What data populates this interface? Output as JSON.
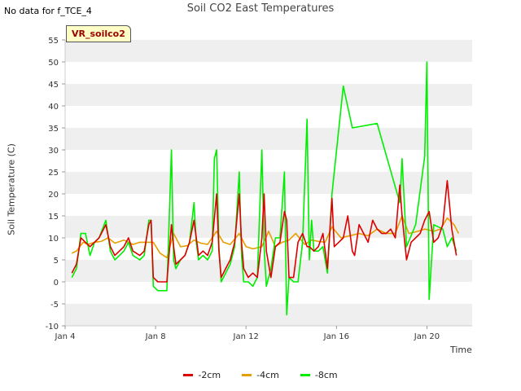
{
  "header": {
    "no_data_text": "No data for f_TCE_4",
    "title": "Soil CO2 East Temperatures",
    "badge": "VR_soilco2"
  },
  "chart_data": {
    "type": "line",
    "title": "Soil CO2 East Temperatures",
    "xlabel": "Time",
    "ylabel": "Soil Temperature (C)",
    "xlim": [
      4,
      22
    ],
    "ylim": [
      -10,
      55
    ],
    "xticks": [
      {
        "value": 4,
        "label": "Jan 4"
      },
      {
        "value": 8,
        "label": "Jan 8"
      },
      {
        "value": 12,
        "label": "Jan 12"
      },
      {
        "value": 16,
        "label": "Jan 16"
      },
      {
        "value": 20,
        "label": "Jan 20"
      }
    ],
    "yticks": [
      -10,
      -5,
      0,
      5,
      10,
      15,
      20,
      25,
      30,
      35,
      40,
      45,
      50,
      55
    ],
    "grid": "alternating horizontal bands",
    "legend_position": "bottom",
    "series": [
      {
        "name": "-2cm",
        "color": "#dd0000",
        "x": [
          4.3,
          4.5,
          4.7,
          4.9,
          5.1,
          5.3,
          5.5,
          5.8,
          6.0,
          6.2,
          6.4,
          6.6,
          6.8,
          7.0,
          7.3,
          7.5,
          7.7,
          7.8,
          7.9,
          8.1,
          8.3,
          8.5,
          8.7,
          8.8,
          8.9,
          9.1,
          9.3,
          9.5,
          9.7,
          9.8,
          9.9,
          10.1,
          10.3,
          10.5,
          10.7,
          10.8,
          10.9,
          11.1,
          11.3,
          11.5,
          11.7,
          11.8,
          11.9,
          12.1,
          12.3,
          12.5,
          12.7,
          12.8,
          12.9,
          13.1,
          13.3,
          13.5,
          13.7,
          13.8,
          13.9,
          14.1,
          14.3,
          14.5,
          14.7,
          14.8,
          15.0,
          15.2,
          15.4,
          15.6,
          15.8,
          15.9,
          16.1,
          16.3,
          16.5,
          16.7,
          16.8,
          17.0,
          17.2,
          17.4,
          17.6,
          17.8,
          18.0,
          18.2,
          18.4,
          18.6,
          18.8,
          18.9,
          19.1,
          19.3,
          19.5,
          19.7,
          19.9,
          20.1,
          20.3,
          20.5,
          20.7,
          20.9,
          21.1,
          21.3
        ],
        "y": [
          2,
          4,
          10,
          9,
          8,
          9,
          10,
          13,
          8,
          6,
          7,
          8,
          10,
          7,
          6,
          7,
          13,
          14,
          1,
          0,
          0,
          0,
          13,
          8,
          4,
          5,
          6,
          9,
          14,
          10,
          6,
          7,
          6,
          9,
          20,
          7,
          1,
          3,
          5,
          9,
          20,
          9,
          3,
          1,
          2,
          1,
          10,
          20,
          7,
          1,
          8,
          9,
          16,
          14,
          1,
          1,
          9,
          11,
          8,
          8,
          7,
          8,
          11,
          3,
          19,
          8,
          9,
          10,
          15,
          7,
          6,
          13,
          11,
          9,
          14,
          12,
          11,
          11,
          12,
          10,
          22,
          15,
          5,
          9,
          10,
          11,
          14,
          16,
          9,
          10,
          13,
          23,
          12,
          6
        ]
      },
      {
        "name": "-4cm",
        "color": "#e69f00",
        "x": [
          4.3,
          4.5,
          4.8,
          5.0,
          5.3,
          5.6,
          5.9,
          6.2,
          6.6,
          7.0,
          7.3,
          7.6,
          7.9,
          8.2,
          8.5,
          8.8,
          9.1,
          9.4,
          9.7,
          10.0,
          10.3,
          10.7,
          11.0,
          11.3,
          11.7,
          12.0,
          12.3,
          12.7,
          13.0,
          13.3,
          13.6,
          13.9,
          14.2,
          14.6,
          14.9,
          15.2,
          15.5,
          15.8,
          16.2,
          16.6,
          17.0,
          17.4,
          17.8,
          18.2,
          18.6,
          18.9,
          19.2,
          19.6,
          19.9,
          20.3,
          20.6,
          20.9,
          21.2,
          21.4
        ],
        "y": [
          6.5,
          7,
          9,
          8.5,
          9,
          9.2,
          10,
          8.8,
          9.5,
          8.5,
          9,
          9,
          9,
          6.5,
          5.5,
          11,
          8,
          8.2,
          9.5,
          8.8,
          8.5,
          11.5,
          9,
          8.5,
          11,
          8,
          7.5,
          8,
          11.5,
          8,
          9,
          9.5,
          11,
          8.5,
          9.5,
          9.2,
          9,
          12.5,
          10,
          10.5,
          11,
          10.5,
          12,
          11,
          11,
          15,
          11,
          11.5,
          12,
          11.5,
          12,
          14.5,
          13,
          11
        ]
      },
      {
        "name": "-8cm",
        "color": "#00ee00",
        "x": [
          4.3,
          4.5,
          4.7,
          4.9,
          5.1,
          5.3,
          5.5,
          5.8,
          6.0,
          6.2,
          6.4,
          6.6,
          6.8,
          7.0,
          7.3,
          7.5,
          7.7,
          7.8,
          7.9,
          8.1,
          8.3,
          8.5,
          8.7,
          8.8,
          8.9,
          9.1,
          9.3,
          9.5,
          9.7,
          9.8,
          9.9,
          10.1,
          10.3,
          10.5,
          10.6,
          10.7,
          10.8,
          10.9,
          11.1,
          11.3,
          11.5,
          11.7,
          11.8,
          11.9,
          12.1,
          12.3,
          12.5,
          12.7,
          12.8,
          12.9,
          13.1,
          13.3,
          13.5,
          13.7,
          13.8,
          13.9,
          14.1,
          14.3,
          14.5,
          14.7,
          14.8,
          14.9,
          15.0,
          15.2,
          15.4,
          15.6,
          15.8,
          16.3,
          16.7,
          17.8,
          18.8,
          18.9,
          19.1,
          19.5,
          19.9,
          20.0,
          20.1,
          20.3,
          20.7,
          20.9,
          21.1,
          21.3
        ],
        "y": [
          1,
          3,
          11,
          11,
          6,
          9,
          10,
          14,
          7,
          5,
          6,
          7,
          9,
          6,
          5,
          6,
          14,
          14,
          -1,
          -2,
          -2,
          -2,
          30,
          5,
          3,
          5,
          6,
          9,
          18,
          9,
          5,
          6,
          5,
          7,
          28,
          30,
          8,
          0,
          2,
          4,
          8,
          25,
          6,
          0,
          0,
          -1,
          1,
          30,
          8,
          -1,
          3,
          10,
          10,
          25,
          -7.5,
          1,
          0,
          0,
          9,
          37,
          5,
          14,
          7,
          7,
          8,
          2,
          20,
          44.5,
          35,
          36,
          18,
          28,
          8,
          13,
          28.5,
          50,
          -4,
          13,
          12,
          8,
          10,
          7
        ]
      }
    ]
  }
}
